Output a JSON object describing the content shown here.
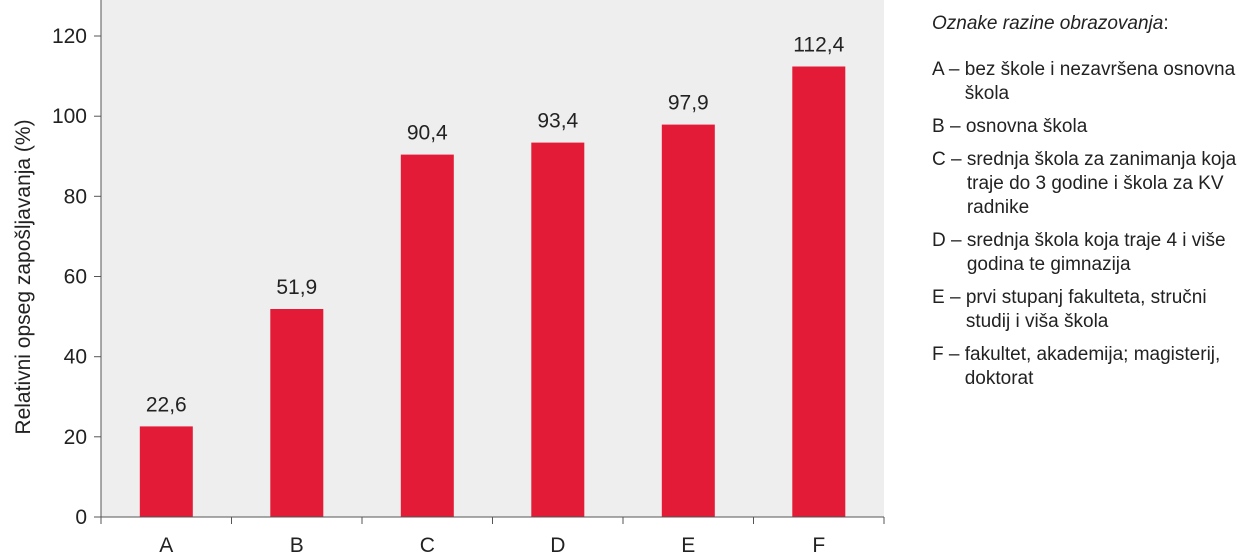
{
  "chart_data": {
    "type": "bar",
    "categories": [
      "A",
      "B",
      "C",
      "D",
      "E",
      "F"
    ],
    "values": [
      22.6,
      51.9,
      90.4,
      93.4,
      97.9,
      112.4
    ],
    "value_labels": [
      "22,6",
      "51,9",
      "90,4",
      "93,4",
      "97,9",
      "112,4"
    ],
    "ylabel": "Relativni opseg zapošljavanja (%)",
    "ylim": [
      0,
      120
    ],
    "yticks": [
      0,
      20,
      40,
      60,
      80,
      100,
      120
    ],
    "ytick_labels": [
      "0",
      "20",
      "40",
      "60",
      "80",
      "100",
      "120"
    ],
    "grid": false,
    "legend_placement": "right",
    "colors": {
      "bar": "#e31b37",
      "plot_background": "#eeeeee"
    }
  },
  "legend": {
    "title": "Oznake razine obrazovanja",
    "title_suffix": ":",
    "items": [
      {
        "code": "A – ",
        "description": "bez škole i nezavršena osnovna škola"
      },
      {
        "code": "B – ",
        "description": "osnovna škola"
      },
      {
        "code": "C – ",
        "description": "srednja škola za zanimanja koja traje do 3 godine i škola za KV radnike"
      },
      {
        "code": "D – ",
        "description": "srednja škola koja traje 4 i više godina te gimnazija"
      },
      {
        "code": "E – ",
        "description": "prvi stupanj fakulteta, stručni studij i viša škola"
      },
      {
        "code": "F – ",
        "description": "fakultet, akademija; magisterij, doktorat"
      }
    ]
  }
}
